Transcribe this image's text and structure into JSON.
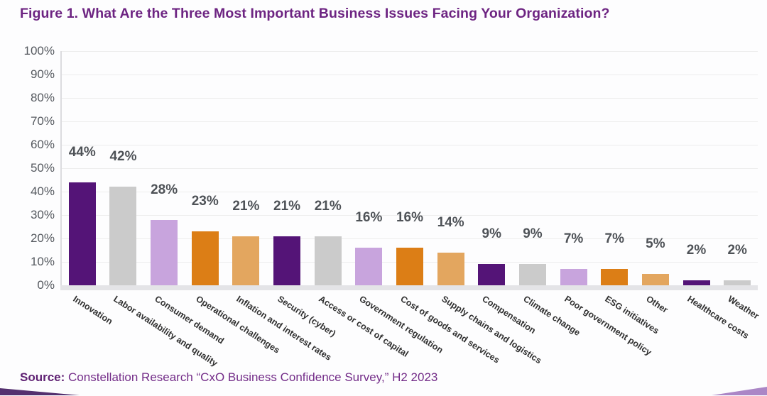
{
  "title": "Figure 1. What Are the Three Most Important Business Issues Facing Your Organization?",
  "source": {
    "label": "Source:",
    "text": "Constellation Research “CxO Business Confidence Survey,” H2 2023"
  },
  "chart_data": {
    "type": "bar",
    "title": "What Are the Three Most Important Business Issues Facing Your Organization?",
    "categories": [
      "Innovation",
      "Labor availability and quality",
      "Consumer demand",
      "Operational challenges",
      "Inflation and interest rates",
      "Security (cyber)",
      "Access or cost of capital",
      "Government regulation",
      "Cost of goods and services",
      "Supply chains and logistics",
      "Compensation",
      "Climate change",
      "Poor government policy",
      "ESG initiatives",
      "Other",
      "Healthcare costs",
      "Weather"
    ],
    "values": [
      44,
      42,
      28,
      23,
      21,
      21,
      21,
      16,
      16,
      14,
      9,
      9,
      7,
      7,
      5,
      2,
      2
    ],
    "value_labels": [
      "44%",
      "42%",
      "28%",
      "23%",
      "21%",
      "21%",
      "21%",
      "16%",
      "16%",
      "14%",
      "9%",
      "9%",
      "7%",
      "7%",
      "5%",
      "2%",
      "2%"
    ],
    "bar_colors": [
      "#541477",
      "#cbcbcb",
      "#c8a4dd",
      "#dc7e16",
      "#e3a65f",
      "#541477",
      "#cbcbcb",
      "#c8a4dd",
      "#dc7e16",
      "#e3a65f",
      "#541477",
      "#cbcbcb",
      "#c8a4dd",
      "#dc7e16",
      "#e3a65f",
      "#541477",
      "#cbcbcb"
    ],
    "xlabel": "",
    "ylabel": "",
    "ylim": [
      0,
      100
    ],
    "yticks": [
      "0%",
      "10%",
      "20%",
      "30%",
      "40%",
      "50%",
      "60%",
      "70%",
      "80%",
      "90%",
      "100%"
    ],
    "grid": true,
    "legend": "none",
    "value_suffix": "%"
  },
  "colors": {
    "title_purple": "#6d2482",
    "source_purple": "#732c88",
    "dark_purple": "#541477",
    "gray": "#cbcbcb",
    "light_purple": "#c8a4dd",
    "orange": "#dc7e16",
    "light_orange": "#e3a65f",
    "tick_text": "#55595f",
    "value_text": "#4e5257",
    "gridline": "#ededed",
    "decor_left_wedge": "#54306f",
    "decor_right_wedge": "#ab86c6"
  }
}
